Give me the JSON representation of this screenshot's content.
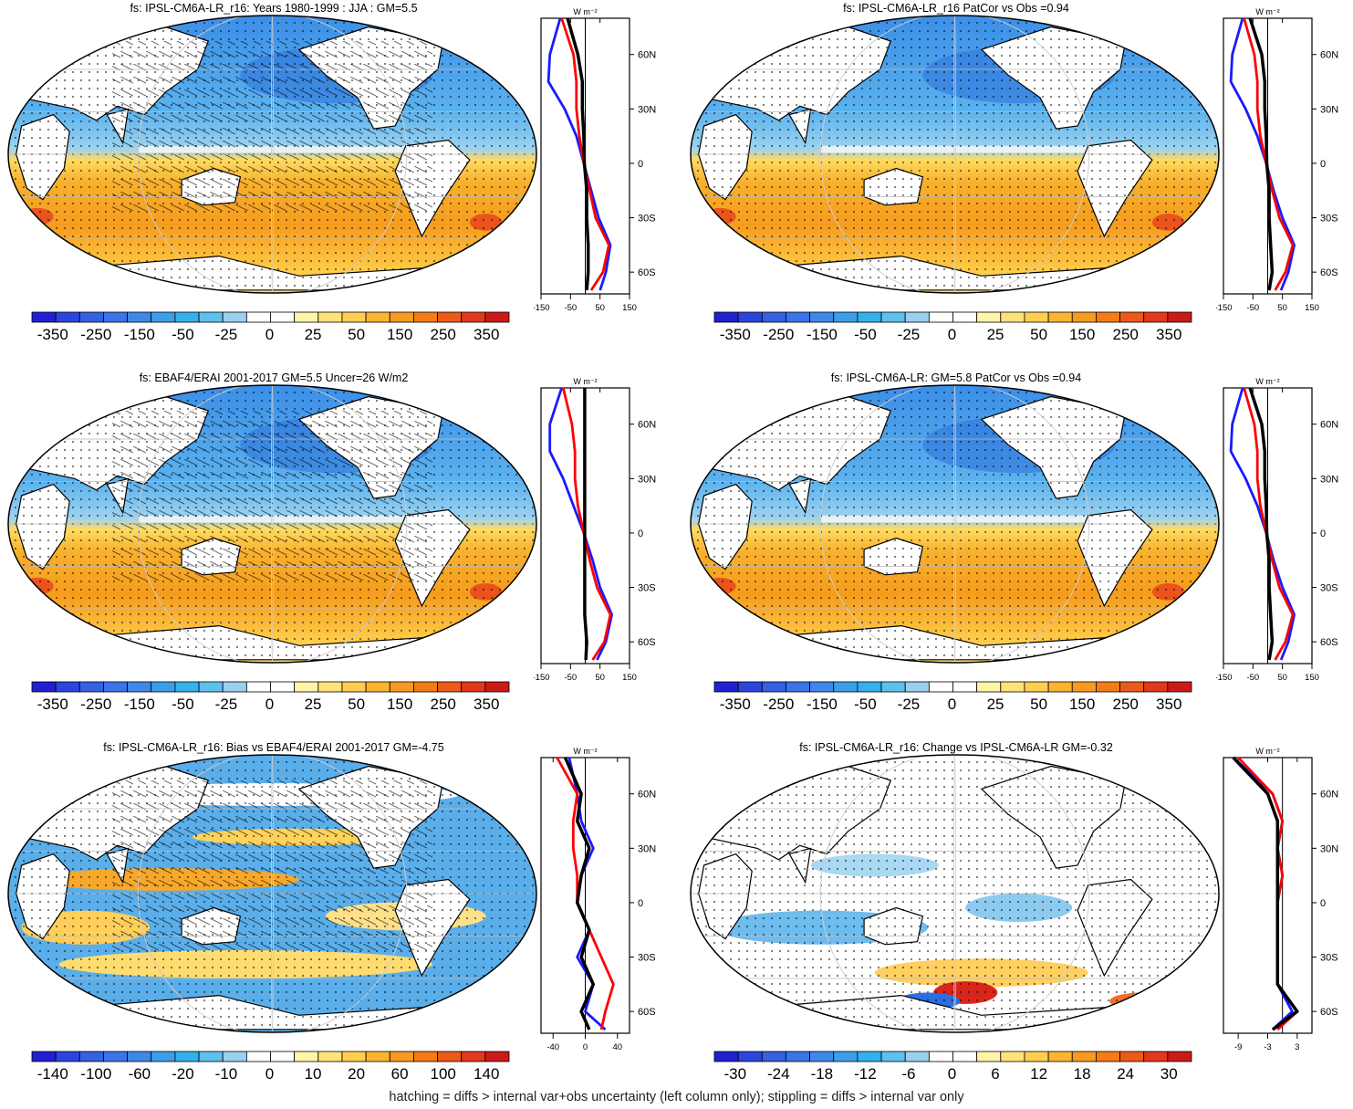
{
  "footnote": "hatching = diffs > internal var+obs uncertainty (left column only); stippling = diffs > internal var only",
  "profile_unit": "W m⁻²",
  "lat_ticks": [
    "60N",
    "30N",
    "0",
    "30S",
    "60S"
  ],
  "colors": {
    "ocean_blue": "#2f8fe6",
    "ocean_orange": "#f5a623",
    "land": "#ffffff",
    "obs": "#1a1aff",
    "model": "#ff0000",
    "ensemble": "#000000"
  },
  "panels": [
    {
      "title": "fs: IPSL-CM6A-LR_r16: Years 1980-1999 : JJA : GM=5.5",
      "pattern": "mean",
      "hatch": true,
      "cb_labels": [
        "-350",
        "-250",
        "-150",
        "-50",
        "-25",
        "0",
        "25",
        "50",
        "150",
        "250",
        "350"
      ],
      "prof_ticks": [
        "-150",
        "-50",
        "50",
        "150"
      ]
    },
    {
      "title": "fs: IPSL-CM6A-LR_r16 PatCor vs Obs =0.94",
      "pattern": "mean",
      "hatch": false,
      "cb_labels": [
        "-350",
        "-250",
        "-150",
        "-50",
        "-25",
        "0",
        "25",
        "50",
        "150",
        "250",
        "350"
      ],
      "prof_ticks": [
        "-150",
        "-50",
        "50",
        "150"
      ]
    },
    {
      "title": "fs: EBAF4/ERAI 2001-2017 GM=5.5 Uncer=26 W/m2",
      "pattern": "mean",
      "hatch": true,
      "cb_labels": [
        "-350",
        "-250",
        "-150",
        "-50",
        "-25",
        "0",
        "25",
        "50",
        "150",
        "250",
        "350"
      ],
      "prof_ticks": [
        "-150",
        "-50",
        "50",
        "150"
      ]
    },
    {
      "title": "fs: IPSL-CM6A-LR: GM=5.8 PatCor vs Obs =0.94",
      "pattern": "mean",
      "hatch": false,
      "cb_labels": [
        "-350",
        "-250",
        "-150",
        "-50",
        "-25",
        "0",
        "25",
        "50",
        "150",
        "250",
        "350"
      ],
      "prof_ticks": [
        "-150",
        "-50",
        "50",
        "150"
      ]
    },
    {
      "title": "fs: IPSL-CM6A-LR_r16: Bias vs EBAF4/ERAI 2001-2017 GM=-4.75",
      "pattern": "bias",
      "hatch": true,
      "cb_labels": [
        "-140",
        "-100",
        "-60",
        "-20",
        "-10",
        "0",
        "10",
        "20",
        "60",
        "100",
        "140"
      ],
      "prof_ticks": [
        "-40",
        "0",
        "40"
      ]
    },
    {
      "title": "fs: IPSL-CM6A-LR_r16: Change vs IPSL-CM6A-LR GM=-0.32",
      "pattern": "change",
      "hatch": false,
      "cb_labels": [
        "-30",
        "-24",
        "-18",
        "-12",
        "-6",
        "0",
        "6",
        "12",
        "18",
        "24",
        "30"
      ],
      "prof_ticks": [
        "-9",
        "-3",
        "3"
      ]
    }
  ],
  "chart_data": [
    {
      "type": "heatmap",
      "title": "fs: IPSL-CM6A-LR_r16: Years 1980-1999 : JJA : GM=5.5",
      "colorbar": [
        -350,
        -250,
        -150,
        -50,
        -25,
        0,
        25,
        50,
        150,
        250,
        350
      ],
      "profile": {
        "lat": [
          80,
          60,
          45,
          30,
          15,
          0,
          -15,
          -30,
          -45,
          -60,
          -70
        ],
        "series": [
          {
            "values": [
              -85,
              -120,
              -125,
              -70,
              -30,
              -5,
              20,
              45,
              85,
              70,
              50
            ]
          },
          {
            "values": [
              -80,
              -40,
              -30,
              -30,
              -20,
              -5,
              15,
              35,
              80,
              60,
              20
            ]
          },
          {
            "values": [
              -60,
              -25,
              -10,
              -10,
              -5,
              -3,
              5,
              5,
              10,
              10,
              5
            ]
          }
        ]
      }
    },
    {
      "type": "heatmap",
      "title": "fs: IPSL-CM6A-LR_r16 PatCor vs Obs =0.94",
      "colorbar": [
        -350,
        -250,
        -150,
        -50,
        -25,
        0,
        25,
        50,
        150,
        250,
        350
      ],
      "profile": {
        "lat": [
          80,
          60,
          45,
          30,
          15,
          0,
          -15,
          -30,
          -45,
          -60,
          -70
        ],
        "series": [
          {
            "values": [
              -85,
              -120,
              -125,
              -75,
              -35,
              -5,
              20,
              50,
              90,
              70,
              45
            ]
          },
          {
            "values": [
              -80,
              -45,
              -35,
              -35,
              -25,
              -5,
              15,
              40,
              85,
              60,
              25
            ]
          },
          {
            "values": [
              -60,
              -20,
              -10,
              -10,
              -5,
              -3,
              5,
              5,
              10,
              15,
              5
            ]
          }
        ]
      }
    },
    {
      "type": "heatmap",
      "title": "fs: EBAF4/ERAI 2001-2017 GM=5.5 Uncer=26 W/m2",
      "colorbar": [
        -350,
        -250,
        -150,
        -50,
        -25,
        0,
        25,
        50,
        150,
        250,
        350
      ],
      "profile": {
        "lat": [
          80,
          60,
          45,
          30,
          15,
          0,
          -15,
          -30,
          -45,
          -60,
          -70
        ],
        "series": [
          {
            "values": [
              -80,
              -120,
              -120,
              -75,
              -40,
              -5,
              25,
              50,
              90,
              70,
              40
            ]
          },
          {
            "values": [
              -75,
              -45,
              -35,
              -35,
              -25,
              -5,
              15,
              40,
              85,
              65,
              25
            ]
          },
          {
            "values": [
              -2,
              -2,
              -2,
              -2,
              -2,
              -2,
              -2,
              -2,
              -2,
              5,
              2
            ]
          }
        ]
      }
    },
    {
      "type": "heatmap",
      "title": "fs: IPSL-CM6A-LR: GM=5.8 PatCor vs Obs =0.94",
      "colorbar": [
        -350,
        -250,
        -150,
        -50,
        -25,
        0,
        25,
        50,
        150,
        250,
        350
      ],
      "profile": {
        "lat": [
          80,
          60,
          45,
          30,
          15,
          0,
          -15,
          -30,
          -45,
          -60,
          -70
        ],
        "series": [
          {
            "values": [
              -85,
              -120,
              -125,
              -75,
              -35,
              -5,
              20,
              50,
              90,
              70,
              45
            ]
          },
          {
            "values": [
              -80,
              -45,
              -35,
              -35,
              -25,
              -5,
              15,
              40,
              85,
              60,
              25
            ]
          },
          {
            "values": [
              -60,
              -20,
              -10,
              -10,
              -5,
              -3,
              5,
              5,
              10,
              15,
              5
            ]
          }
        ]
      }
    },
    {
      "type": "heatmap",
      "title": "fs: IPSL-CM6A-LR_r16: Bias vs EBAF4/ERAI 2001-2017 GM=-4.75",
      "colorbar": [
        -140,
        -100,
        -60,
        -20,
        -10,
        0,
        10,
        20,
        60,
        100,
        140
      ],
      "profile": {
        "lat": [
          80,
          60,
          45,
          30,
          15,
          0,
          -15,
          -30,
          -45,
          -60,
          -70
        ],
        "series": [
          {
            "values": [
              -20,
              -10,
              -5,
              10,
              -5,
              -10,
              5,
              -10,
              10,
              0,
              25
            ]
          },
          {
            "values": [
              -35,
              -10,
              -15,
              -15,
              -10,
              -10,
              5,
              20,
              35,
              25,
              20
            ]
          },
          {
            "values": [
              -25,
              -5,
              -10,
              5,
              -5,
              -10,
              5,
              -5,
              10,
              -5,
              5
            ]
          }
        ]
      }
    },
    {
      "type": "heatmap",
      "title": "fs: IPSL-CM6A-LR_r16: Change vs IPSL-CM6A-LR GM=-0.32",
      "colorbar": [
        -30,
        -24,
        -18,
        -12,
        -6,
        0,
        6,
        12,
        18,
        24,
        30
      ],
      "profile": {
        "lat": [
          80,
          60,
          45,
          30,
          15,
          0,
          -15,
          -30,
          -45,
          -60,
          -70
        ],
        "series": [
          {
            "values": [
              -10,
              -2,
              0,
              -1,
              0,
              -1,
              -1,
              -1,
              -1,
              2,
              -2
            ]
          },
          {
            "values": [
              -9,
              -2,
              0,
              -1,
              0,
              -1,
              -1,
              -1,
              -1,
              3,
              -1
            ]
          },
          {
            "values": [
              -10,
              -3,
              -1,
              -1,
              -1,
              -1,
              -1,
              -1,
              -1,
              3,
              -2
            ]
          }
        ]
      }
    }
  ]
}
